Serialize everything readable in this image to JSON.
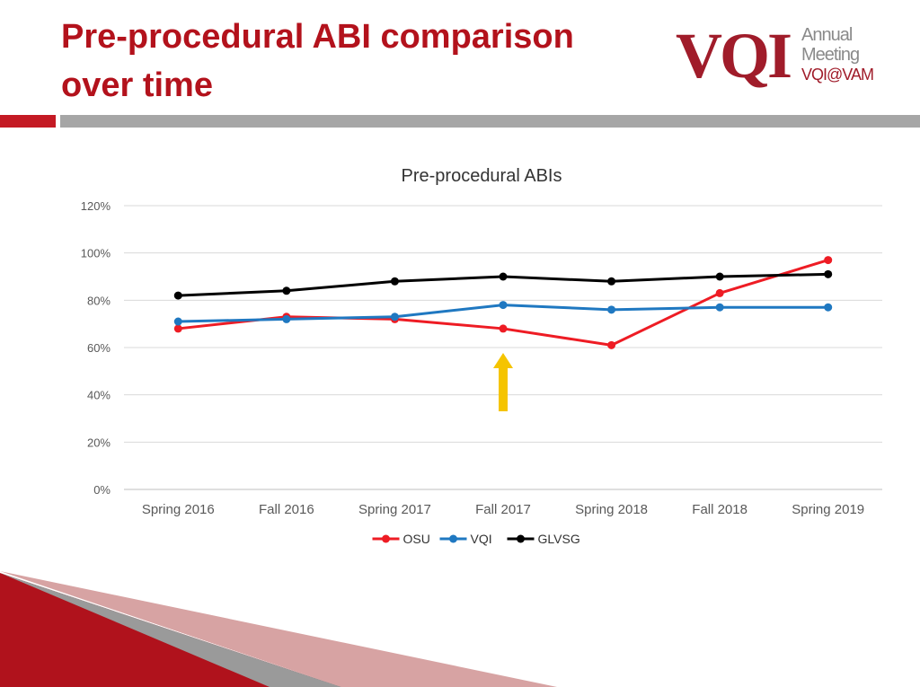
{
  "slide": {
    "title": "Pre-procedural ABI comparison over time"
  },
  "logo": {
    "mark": "VQI",
    "line1": "Annual",
    "line2": "Meeting",
    "line3": "VQI@VAM"
  },
  "chart_data": {
    "type": "line",
    "title": "Pre-procedural ABIs",
    "categories": [
      "Spring 2016",
      "Fall 2016",
      "Spring 2017",
      "Fall 2017",
      "Spring 2018",
      "Fall 2018",
      "Spring 2019"
    ],
    "y_ticks": [
      "0%",
      "20%",
      "40%",
      "60%",
      "80%",
      "100%",
      "120%"
    ],
    "ylim": [
      0,
      120
    ],
    "grid": true,
    "legend_position": "bottom",
    "series": [
      {
        "name": "OSU",
        "color": "#ee1c24",
        "values": [
          68,
          73,
          72,
          68,
          61,
          83,
          97
        ]
      },
      {
        "name": "VQI",
        "color": "#1f78c1",
        "values": [
          71,
          72,
          73,
          78,
          76,
          77,
          77
        ]
      },
      {
        "name": "GLVSG",
        "color": "#000000",
        "values": [
          82,
          84,
          88,
          90,
          88,
          90,
          91
        ]
      }
    ],
    "annotation": {
      "type": "up-arrow",
      "color": "#f5c400",
      "category_index": 3
    }
  }
}
